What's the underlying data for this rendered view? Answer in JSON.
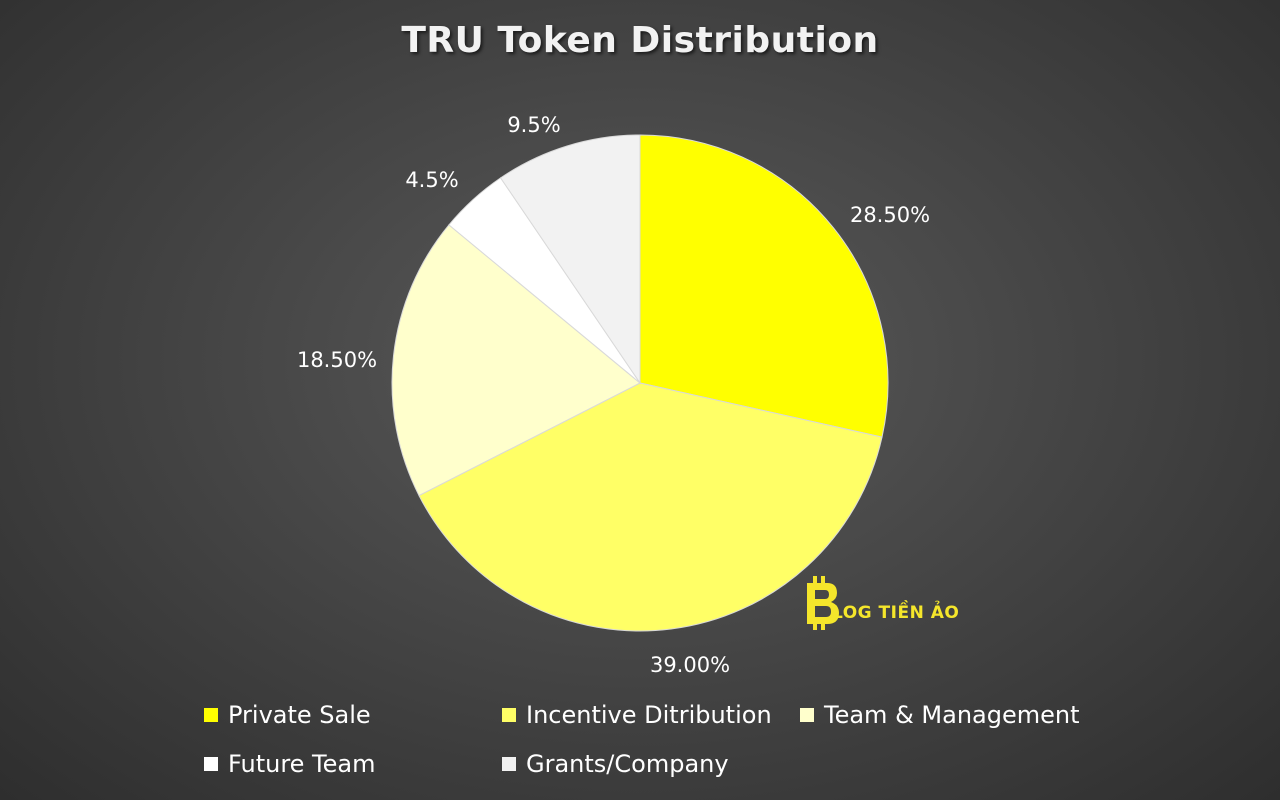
{
  "chart_data": {
    "type": "pie",
    "title": "TRU Token Distribution",
    "categories": [
      "Private Sale",
      "Incentive Ditribution",
      "Team & Management",
      "Future Team",
      "Grants/Company"
    ],
    "values": [
      28.5,
      39.0,
      18.5,
      4.5,
      9.5
    ],
    "data_labels": [
      "28.50%",
      "39.00%",
      "18.50%",
      "4.5%",
      "9.5%"
    ],
    "colors": [
      "#ffff00",
      "#ffff66",
      "#ffffcc",
      "#ffffff",
      "#f2f2f2"
    ],
    "start_angle": "12 o'clock",
    "direction": "clockwise",
    "legend_position": "bottom"
  },
  "watermark": {
    "text": "LOG TIỀN ẢO",
    "icon": "bitcoin-b-logo",
    "color": "#f5e62b"
  }
}
